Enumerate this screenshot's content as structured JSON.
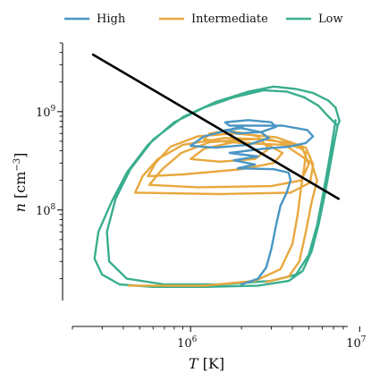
{
  "chart_data": {
    "type": "line",
    "x_scale": "log",
    "y_scale": "log",
    "xlabel_var": "T",
    "xlabel_unit": "[K]",
    "ylabel_var": "n",
    "ylabel_unit_pre": "[cm",
    "ylabel_unit_sup": "−3",
    "ylabel_unit_post": "]",
    "xlim": [
      200000,
      8500000
    ],
    "ylim": [
      12000000,
      5000000000
    ],
    "x_ticks": [
      {
        "base": "10",
        "exp": "6",
        "value": 1000000
      },
      {
        "base": "10",
        "exp": "7",
        "value": 10000000
      }
    ],
    "y_ticks": [
      {
        "base": "10",
        "exp": "8",
        "value": 100000000
      },
      {
        "base": "10",
        "exp": "9",
        "value": 1000000000
      }
    ],
    "legend_position": "top",
    "grid": false,
    "series": [
      {
        "name": "Low",
        "color": "#3aae8e",
        "points": [
          [
            7400000,
            720000000
          ],
          [
            7100000,
            500000000
          ],
          [
            6600000,
            250000000
          ],
          [
            6200000,
            140000000
          ],
          [
            5700000,
            70000000
          ],
          [
            5200000,
            38000000
          ],
          [
            4600000,
            24000000
          ],
          [
            3800000,
            19000000
          ],
          [
            2500000,
            17000000
          ],
          [
            1200000,
            16500000
          ],
          [
            600000,
            16500000
          ],
          [
            380000,
            17500000
          ],
          [
            300000,
            22000000
          ],
          [
            270000,
            32000000
          ],
          [
            285000,
            60000000
          ],
          [
            340000,
            120000000
          ],
          [
            420000,
            240000000
          ],
          [
            560000,
            460000000
          ],
          [
            800000,
            780000000
          ],
          [
            1200000,
            1100000000
          ],
          [
            1800000,
            1400000000
          ],
          [
            2700000,
            1650000000
          ],
          [
            3700000,
            1600000000
          ],
          [
            4700000,
            1400000000
          ],
          [
            5700000,
            1150000000
          ],
          [
            6500000,
            900000000
          ],
          [
            7400000,
            720000000
          ],
          [
            7600000,
            800000000
          ],
          [
            7200000,
            1100000000
          ],
          [
            6500000,
            1300000000
          ],
          [
            5300000,
            1550000000
          ],
          [
            4200000,
            1700000000
          ],
          [
            3100000,
            1800000000
          ],
          [
            2200000,
            1600000000
          ],
          [
            1400000,
            1250000000
          ],
          [
            900000,
            880000000
          ],
          [
            600000,
            520000000
          ],
          [
            440000,
            260000000
          ],
          [
            360000,
            130000000
          ],
          [
            320000,
            60000000
          ],
          [
            330000,
            30000000
          ],
          [
            420000,
            20000000
          ],
          [
            700000,
            17500000
          ],
          [
            1500000,
            17500000
          ],
          [
            3000000,
            19000000
          ],
          [
            4200000,
            22000000
          ],
          [
            5000000,
            35000000
          ],
          [
            5600000,
            70000000
          ],
          [
            6100000,
            150000000
          ],
          [
            6600000,
            320000000
          ],
          [
            7000000,
            600000000
          ],
          [
            7200000,
            820000000
          ]
        ]
      },
      {
        "name": "Intermediate",
        "color": "#e8a83e",
        "points": [
          [
            430000,
            17000000
          ],
          [
            1200000,
            17000000
          ],
          [
            2400000,
            19000000
          ],
          [
            3400000,
            25000000
          ],
          [
            4000000,
            45000000
          ],
          [
            4300000,
            90000000
          ],
          [
            4500000,
            170000000
          ],
          [
            4700000,
            270000000
          ],
          [
            4800000,
            380000000
          ],
          [
            4200000,
            470000000
          ],
          [
            2500000,
            530000000
          ],
          [
            1300000,
            490000000
          ],
          [
            880000,
            380000000
          ],
          [
            680000,
            260000000
          ],
          [
            570000,
            180000000
          ],
          [
            1100000,
            170000000
          ],
          [
            3000000,
            175000000
          ],
          [
            4500000,
            200000000
          ],
          [
            5000000,
            290000000
          ],
          [
            4600000,
            420000000
          ],
          [
            3000000,
            520000000
          ],
          [
            1600000,
            540000000
          ],
          [
            900000,
            460000000
          ],
          [
            640000,
            330000000
          ],
          [
            520000,
            220000000
          ],
          [
            470000,
            150000000
          ],
          [
            1500000,
            145000000
          ],
          [
            3900000,
            150000000
          ],
          [
            5100000,
            190000000
          ],
          [
            5300000,
            290000000
          ],
          [
            4800000,
            430000000
          ],
          [
            3200000,
            550000000
          ],
          [
            1800000,
            600000000
          ],
          [
            1100000,
            560000000
          ],
          [
            760000,
            440000000
          ],
          [
            620000,
            300000000
          ],
          [
            560000,
            220000000
          ],
          [
            900000,
            230000000
          ],
          [
            2000000,
            260000000
          ],
          [
            3100000,
            300000000
          ],
          [
            3500000,
            380000000
          ],
          [
            2800000,
            470000000
          ],
          [
            1800000,
            490000000
          ],
          [
            1200000,
            420000000
          ],
          [
            1000000,
            330000000
          ],
          [
            1500000,
            310000000
          ],
          [
            2400000,
            330000000
          ],
          [
            2900000,
            420000000
          ],
          [
            2500000,
            560000000
          ],
          [
            1700000,
            640000000
          ],
          [
            1300000,
            600000000
          ],
          [
            1200000,
            520000000
          ],
          [
            2000000,
            480000000
          ],
          [
            3600000,
            460000000
          ],
          [
            5200000,
            300000000
          ],
          [
            5600000,
            200000000
          ],
          [
            5200000,
            120000000
          ],
          [
            4800000,
            60000000
          ],
          [
            4400000,
            30000000
          ],
          [
            3800000,
            21000000
          ],
          [
            2800000,
            18500000
          ]
        ]
      },
      {
        "name": "High",
        "color": "#4a96c4",
        "points": [
          [
            2000000,
            17500000
          ],
          [
            2500000,
            20000000
          ],
          [
            2800000,
            26000000
          ],
          [
            3000000,
            40000000
          ],
          [
            3200000,
            70000000
          ],
          [
            3400000,
            110000000
          ],
          [
            3700000,
            150000000
          ],
          [
            3900000,
            200000000
          ],
          [
            3800000,
            240000000
          ],
          [
            3100000,
            260000000
          ],
          [
            1900000,
            265000000
          ],
          [
            2400000,
            290000000
          ],
          [
            1800000,
            320000000
          ],
          [
            2500000,
            350000000
          ],
          [
            1700000,
            380000000
          ],
          [
            2700000,
            420000000
          ],
          [
            3800000,
            440000000
          ],
          [
            4800000,
            480000000
          ],
          [
            5300000,
            560000000
          ],
          [
            4900000,
            650000000
          ],
          [
            3500000,
            720000000
          ],
          [
            2100000,
            720000000
          ],
          [
            1200000,
            560000000
          ],
          [
            1000000,
            450000000
          ],
          [
            1400000,
            430000000
          ],
          [
            2200000,
            460000000
          ],
          [
            2900000,
            540000000
          ],
          [
            2600000,
            620000000
          ],
          [
            2000000,
            680000000
          ],
          [
            1600000,
            650000000
          ],
          [
            1900000,
            600000000
          ],
          [
            2600000,
            620000000
          ],
          [
            3200000,
            700000000
          ],
          [
            3000000,
            780000000
          ],
          [
            2200000,
            820000000
          ],
          [
            1600000,
            780000000
          ],
          [
            1700000,
            720000000
          ],
          [
            2300000,
            720000000
          ]
        ]
      },
      {
        "name": "",
        "color": "#000000",
        "points": [
          [
            265000,
            3800000000
          ],
          [
            7500000,
            130000000
          ]
        ]
      }
    ]
  }
}
